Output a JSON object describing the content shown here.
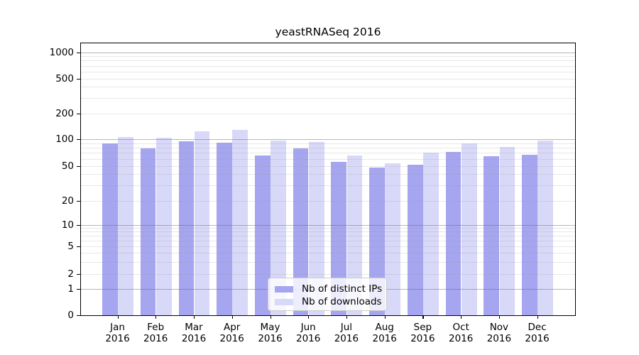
{
  "chart_data": {
    "type": "bar",
    "title": "yeastRNASeq 2016",
    "year": "2016",
    "months": [
      "Jan",
      "Feb",
      "Mar",
      "Apr",
      "May",
      "Jun",
      "Jul",
      "Aug",
      "Sep",
      "Oct",
      "Nov",
      "Dec"
    ],
    "series": [
      {
        "name": "Nb of distinct IPs",
        "color": "#a5a5f0",
        "values": [
          90,
          79,
          94,
          92,
          65,
          79,
          55,
          48,
          51,
          72,
          64,
          67
        ]
      },
      {
        "name": "Nb of downloads",
        "color": "#d8d8f8",
        "values": [
          106,
          104,
          124,
          127,
          96,
          93,
          66,
          53,
          71,
          90,
          82,
          97
        ]
      }
    ],
    "y_ticks": [
      0,
      1,
      2,
      5,
      10,
      20,
      50,
      100,
      200,
      500,
      1000
    ],
    "y_major_gridlines": [
      1,
      10,
      100,
      1000
    ],
    "y_minor_gridlines": [
      3,
      4,
      6,
      7,
      8,
      9,
      30,
      40,
      60,
      70,
      80,
      90,
      300,
      400,
      600,
      700,
      800,
      900
    ],
    "y_scale": "symlog",
    "ylim": [
      0,
      1300
    ],
    "xlabel": "",
    "ylabel": "",
    "grid": true,
    "legend_position": "inside-bottom-center",
    "colors": {
      "major_grid": "#b3b3b3",
      "minor_grid": "#e8e8e8",
      "axis": "#000000",
      "background": "#ffffff",
      "text": "#000000"
    }
  }
}
